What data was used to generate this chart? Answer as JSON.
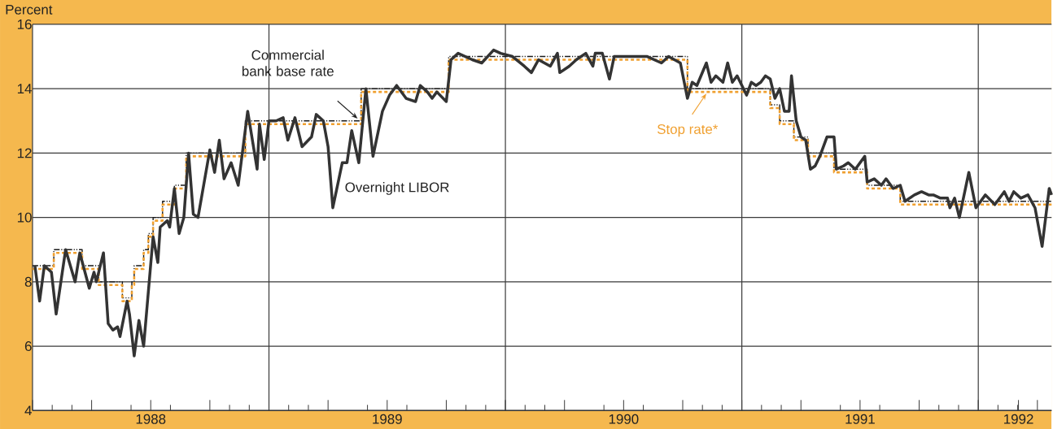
{
  "chart_data": {
    "type": "line",
    "ylabel": "Percent",
    "xlim": [
      1988.0,
      1992.31
    ],
    "ylim": [
      4,
      16
    ],
    "yticks": [
      4,
      6,
      8,
      10,
      12,
      14,
      16
    ],
    "xticks": [
      {
        "value": 1988.0,
        "label": null
      },
      {
        "value": 1988.25,
        "label": null
      },
      {
        "value": 1988.5,
        "label": "1988"
      },
      {
        "value": 1988.75,
        "label": null
      },
      {
        "value": 1989.0,
        "label": null
      },
      {
        "value": 1989.25,
        "label": null
      },
      {
        "value": 1989.5,
        "label": "1989"
      },
      {
        "value": 1989.75,
        "label": null
      },
      {
        "value": 1990.0,
        "label": null
      },
      {
        "value": 1990.25,
        "label": null
      },
      {
        "value": 1990.5,
        "label": "1990"
      },
      {
        "value": 1990.75,
        "label": null
      },
      {
        "value": 1991.0,
        "label": null
      },
      {
        "value": 1991.25,
        "label": null
      },
      {
        "value": 1991.5,
        "label": "1991"
      },
      {
        "value": 1991.75,
        "label": null
      },
      {
        "value": 1992.0,
        "label": null
      },
      {
        "value": 1992.17,
        "label": "1992"
      },
      {
        "value": 1992.25,
        "label": null
      }
    ],
    "grid": true,
    "marker": "none",
    "series": [
      {
        "name": "Overnight LIBOR",
        "color": "#333333",
        "line_style": "solid",
        "x": [
          1988.01,
          1988.03,
          1988.05,
          1988.08,
          1988.1,
          1988.14,
          1988.18,
          1988.2,
          1988.24,
          1988.26,
          1988.27,
          1988.3,
          1988.32,
          1988.34,
          1988.36,
          1988.37,
          1988.4,
          1988.41,
          1988.43,
          1988.45,
          1988.47,
          1988.51,
          1988.53,
          1988.54,
          1988.57,
          1988.58,
          1988.6,
          1988.62,
          1988.64,
          1988.66,
          1988.68,
          1988.7,
          1988.75,
          1988.77,
          1988.79,
          1988.81,
          1988.84,
          1988.87,
          1988.91,
          1988.95,
          1988.96,
          1988.98,
          1989.0,
          1989.03,
          1989.06,
          1989.08,
          1989.11,
          1989.14,
          1989.18,
          1989.2,
          1989.23,
          1989.25,
          1989.27,
          1989.31,
          1989.33,
          1989.35,
          1989.38,
          1989.41,
          1989.44,
          1989.48,
          1989.51,
          1989.54,
          1989.58,
          1989.62,
          1989.64,
          1989.67,
          1989.69,
          1989.71,
          1989.75,
          1989.77,
          1989.8,
          1989.86,
          1989.9,
          1989.95,
          1989.98,
          1990.03,
          1990.08,
          1990.11,
          1990.14,
          1990.19,
          1990.22,
          1990.23,
          1990.27,
          1990.3,
          1990.34,
          1990.37,
          1990.38,
          1990.41,
          1990.44,
          1990.46,
          1990.53,
          1990.6,
          1990.66,
          1990.69,
          1990.74,
          1990.77,
          1990.79,
          1990.81,
          1990.85,
          1990.87,
          1990.89,
          1990.92,
          1990.94,
          1990.96,
          1990.98,
          1991.02,
          1991.04,
          1991.06,
          1991.08,
          1991.1,
          1991.12,
          1991.14,
          1991.16,
          1991.18,
          1991.2,
          1991.21,
          1991.23,
          1991.25,
          1991.27,
          1991.29,
          1991.31,
          1991.33,
          1991.36,
          1991.39,
          1991.4,
          1991.43,
          1991.45,
          1991.48,
          1991.52,
          1991.53,
          1991.56,
          1991.59,
          1991.61,
          1991.64,
          1991.67,
          1991.69,
          1991.73,
          1991.76,
          1991.79,
          1991.81,
          1991.84,
          1991.87,
          1991.88,
          1991.9,
          1991.92,
          1991.96,
          1991.99,
          1992.03,
          1992.07,
          1992.11,
          1992.13,
          1992.15,
          1992.18,
          1992.21,
          1992.24,
          1992.27,
          1992.3,
          1992.31
        ],
        "values": [
          8.5,
          7.4,
          8.5,
          8.3,
          7.0,
          9.0,
          8.0,
          8.9,
          7.8,
          8.3,
          8.0,
          8.9,
          6.7,
          6.5,
          6.6,
          6.3,
          7.4,
          7.0,
          5.7,
          6.8,
          6.0,
          9.4,
          8.6,
          9.7,
          9.9,
          9.7,
          10.9,
          9.5,
          10.0,
          12.0,
          10.1,
          10.0,
          12.1,
          11.4,
          12.4,
          11.2,
          11.7,
          11.0,
          13.3,
          11.5,
          12.9,
          11.8,
          13.0,
          13.0,
          13.1,
          12.4,
          13.1,
          12.2,
          12.5,
          13.2,
          13.0,
          12.2,
          10.3,
          11.7,
          11.7,
          12.7,
          11.7,
          14.0,
          11.9,
          13.3,
          13.8,
          14.1,
          13.7,
          13.6,
          14.1,
          13.9,
          13.7,
          13.9,
          13.6,
          14.9,
          15.1,
          14.9,
          14.8,
          15.2,
          15.1,
          15.0,
          14.7,
          14.5,
          14.9,
          14.7,
          15.1,
          14.5,
          14.7,
          14.9,
          15.1,
          14.7,
          15.1,
          15.1,
          14.3,
          15.0,
          15.0,
          15.0,
          14.8,
          15.0,
          14.8,
          13.7,
          14.2,
          14.1,
          14.8,
          14.2,
          14.4,
          14.2,
          14.8,
          14.2,
          14.4,
          13.8,
          14.2,
          14.1,
          14.2,
          14.4,
          14.3,
          13.7,
          14.0,
          13.3,
          13.3,
          14.4,
          13.0,
          12.5,
          12.4,
          11.5,
          11.6,
          11.9,
          12.5,
          12.5,
          11.5,
          11.6,
          11.7,
          11.5,
          11.9,
          11.1,
          11.2,
          11.0,
          11.2,
          10.9,
          11.0,
          10.5,
          10.7,
          10.8,
          10.7,
          10.7,
          10.6,
          10.6,
          10.3,
          10.6,
          10.0,
          11.4,
          10.3,
          10.7,
          10.4,
          10.8,
          10.5,
          10.8,
          10.6,
          10.7,
          10.3,
          9.1,
          10.9,
          10.7
        ]
      },
      {
        "name": "Commercial bank base rate",
        "type": "step",
        "color": "#1a1a1a",
        "line_style": "dotted",
        "x": [
          1988.0,
          1988.09,
          1988.21,
          1988.28,
          1988.38,
          1988.42,
          1988.43,
          1988.47,
          1988.49,
          1988.51,
          1988.55,
          1988.6,
          1988.65,
          1988.9,
          1989.39,
          1989.76,
          1990.77,
          1991.12,
          1991.16,
          1991.22,
          1991.28,
          1991.39,
          1991.53,
          1991.67,
          1992.31
        ],
        "values": [
          8.5,
          9,
          8.5,
          8,
          7.5,
          8,
          8.5,
          9,
          9.5,
          10,
          10.5,
          11,
          12,
          13,
          14,
          15,
          14,
          13.5,
          13,
          12.5,
          12,
          11.5,
          11,
          10.5,
          10.5
        ]
      },
      {
        "name": "Stop rate*",
        "type": "step",
        "color": "#f0a030",
        "line_style": "dashed",
        "x": [
          1988.0,
          1988.09,
          1988.21,
          1988.28,
          1988.38,
          1988.42,
          1988.43,
          1988.47,
          1988.49,
          1988.51,
          1988.55,
          1988.6,
          1988.65,
          1988.9,
          1989.39,
          1989.76,
          1990.77,
          1991.12,
          1991.16,
          1991.22,
          1991.28,
          1991.39,
          1991.53,
          1991.67,
          1992.31
        ],
        "values": [
          8.4,
          8.9,
          8.4,
          7.9,
          7.4,
          7.9,
          8.4,
          8.9,
          9.4,
          9.9,
          10.4,
          10.9,
          11.9,
          12.9,
          13.9,
          14.9,
          13.9,
          13.4,
          12.9,
          12.4,
          11.9,
          11.4,
          10.9,
          10.4,
          10.4
        ]
      }
    ]
  }
}
